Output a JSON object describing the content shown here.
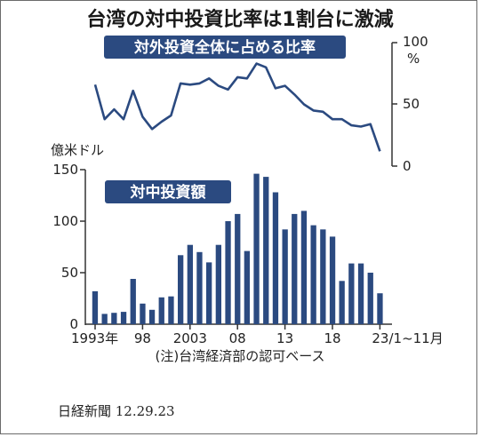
{
  "header": {
    "title": "台湾の対中投資比率は1割台に激減"
  },
  "footer": {
    "source": "日経新聞 12.29.23"
  },
  "chart_data": [
    {
      "type": "line",
      "title": "対外投資全体に占める比率",
      "y_unit": "%",
      "ylim": [
        0,
        100
      ],
      "y_ticks": [
        "100",
        "50",
        "0"
      ],
      "x": [
        1993,
        1994,
        1995,
        1996,
        1997,
        1998,
        1999,
        2000,
        2001,
        2002,
        2003,
        2004,
        2005,
        2006,
        2007,
        2008,
        2009,
        2010,
        2011,
        2012,
        2013,
        2014,
        2015,
        2016,
        2017,
        2018,
        2019,
        2020,
        2021,
        2022,
        2023
      ],
      "values": [
        66,
        38,
        46,
        38,
        61,
        40,
        30,
        36,
        41,
        67,
        66,
        67,
        71,
        65,
        62,
        72,
        71,
        83,
        80,
        63,
        65,
        58,
        50,
        45,
        44,
        38,
        38,
        33,
        32,
        34,
        12
      ],
      "grid": false
    },
    {
      "type": "bar",
      "title": "対中投資額",
      "y_unit": "億米ドル",
      "ylim": [
        0,
        150
      ],
      "y_ticks": [
        "150",
        "100",
        "50",
        "0"
      ],
      "x_tick_labels": [
        {
          "year": 1993,
          "label": "1993年"
        },
        {
          "year": 1998,
          "label": "98"
        },
        {
          "year": 2003,
          "label": "2003"
        },
        {
          "year": 2008,
          "label": "08"
        },
        {
          "year": 2013,
          "label": "13"
        },
        {
          "year": 2018,
          "label": "18"
        },
        {
          "year": 2023,
          "label": "23/1~11月"
        }
      ],
      "x": [
        1993,
        1994,
        1995,
        1996,
        1997,
        1998,
        1999,
        2000,
        2001,
        2002,
        2003,
        2004,
        2005,
        2006,
        2007,
        2008,
        2009,
        2010,
        2011,
        2012,
        2013,
        2014,
        2015,
        2016,
        2017,
        2018,
        2019,
        2020,
        2021,
        2022,
        2023
      ],
      "values": [
        32,
        10,
        11,
        12,
        44,
        20,
        14,
        26,
        27,
        67,
        77,
        70,
        60,
        77,
        100,
        107,
        71,
        146,
        143,
        128,
        92,
        107,
        110,
        96,
        92,
        85,
        42,
        59,
        59,
        50,
        30
      ],
      "note": "(注)台湾経済部の認可ベース",
      "grid": false
    }
  ]
}
